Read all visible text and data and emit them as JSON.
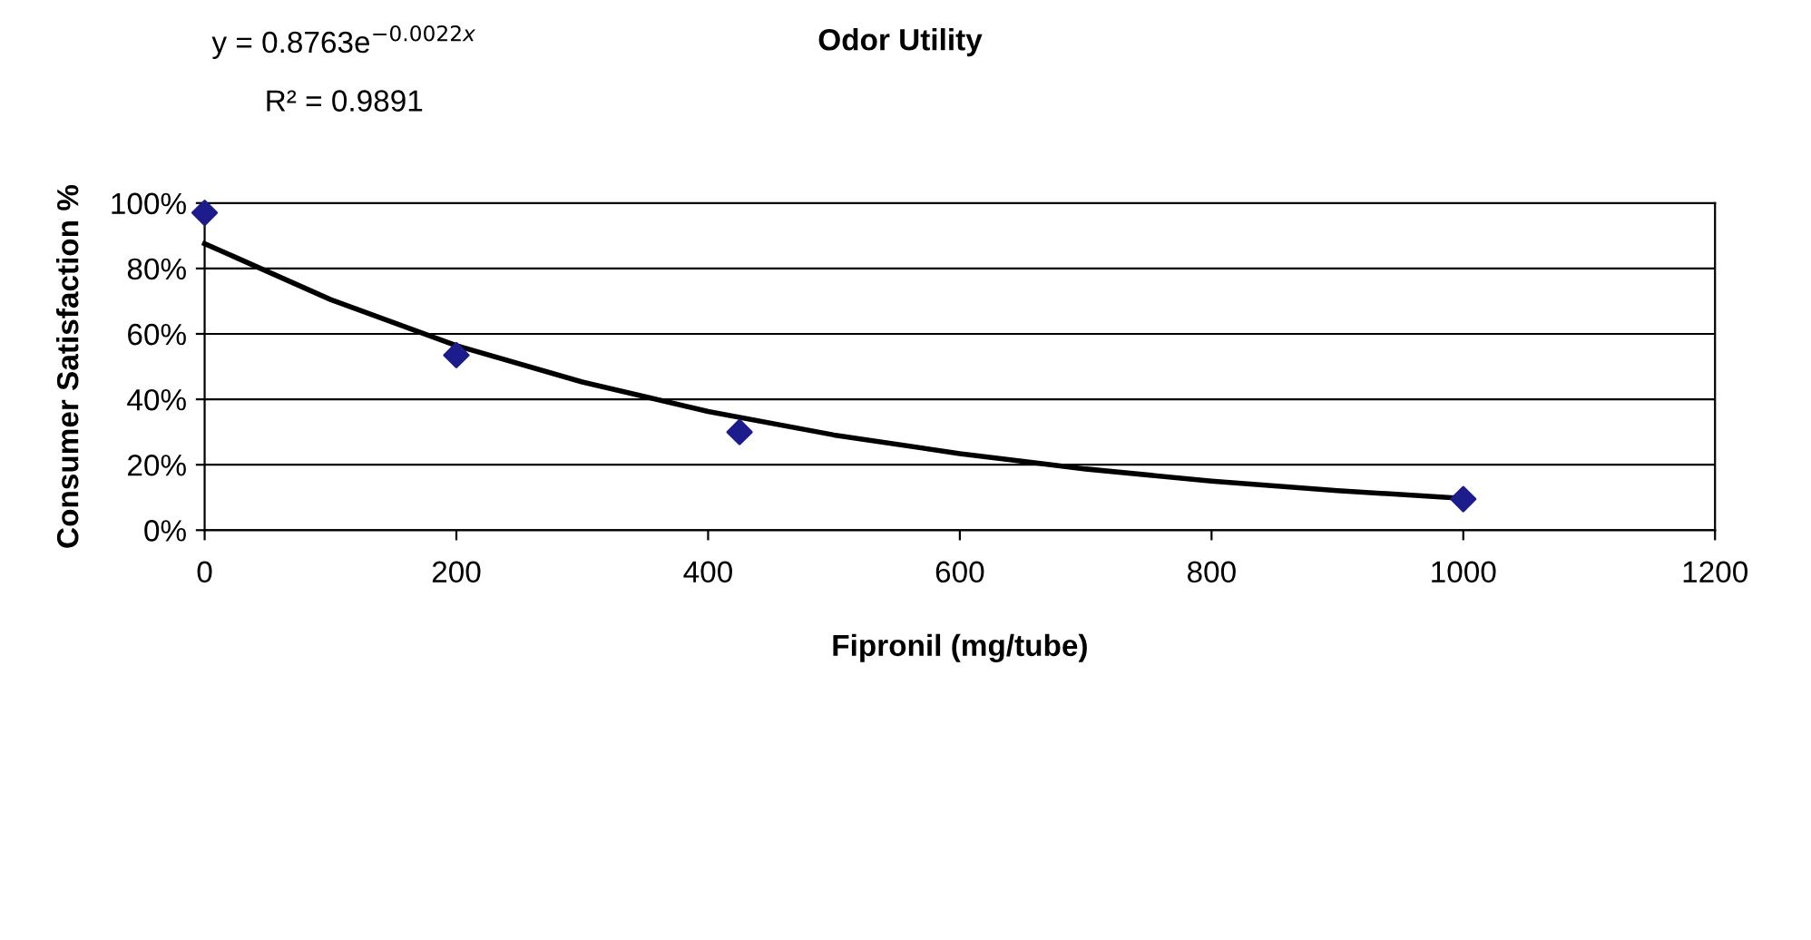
{
  "chart_data": {
    "type": "scatter",
    "title": "Odor Utility",
    "xlabel": "Fipronil (mg/tube)",
    "ylabel": "Consumer Satisfaction %",
    "annotations": [
      "y = 0.8763e$^{−0.0022x}$",
      "R² = 0.9891"
    ],
    "series": [
      {
        "color": "#1c1c8c",
        "marker": "diamond",
        "x": [
          0,
          200,
          425,
          1000
        ],
        "values": [
          97,
          53.5,
          30,
          9.5
        ]
      },
      {
        "type": "line",
        "color": "#000000",
        "marker": "none",
        "line_style": "solid",
        "x": [
          0,
          100,
          200,
          300,
          400,
          500,
          600,
          700,
          800,
          900,
          1000
        ],
        "values": [
          87.6,
          70.5,
          56.4,
          45.3,
          36.3,
          29.1,
          23.4,
          18.7,
          15.0,
          12.1,
          9.7
        ]
      }
    ],
    "xlim": [
      0,
      1200
    ],
    "xticks": [
      0,
      200,
      400,
      600,
      800,
      1000,
      1200
    ],
    "ylim": [
      0,
      100
    ],
    "yticks": [
      {
        "value": 0,
        "label": "0%"
      },
      {
        "value": 20,
        "label": "20%"
      },
      {
        "value": 40,
        "label": "40%"
      },
      {
        "value": 60,
        "label": "60%"
      },
      {
        "value": 80,
        "label": "80%"
      },
      {
        "value": 100,
        "label": "100%"
      }
    ],
    "grid": "y",
    "legend": false
  }
}
